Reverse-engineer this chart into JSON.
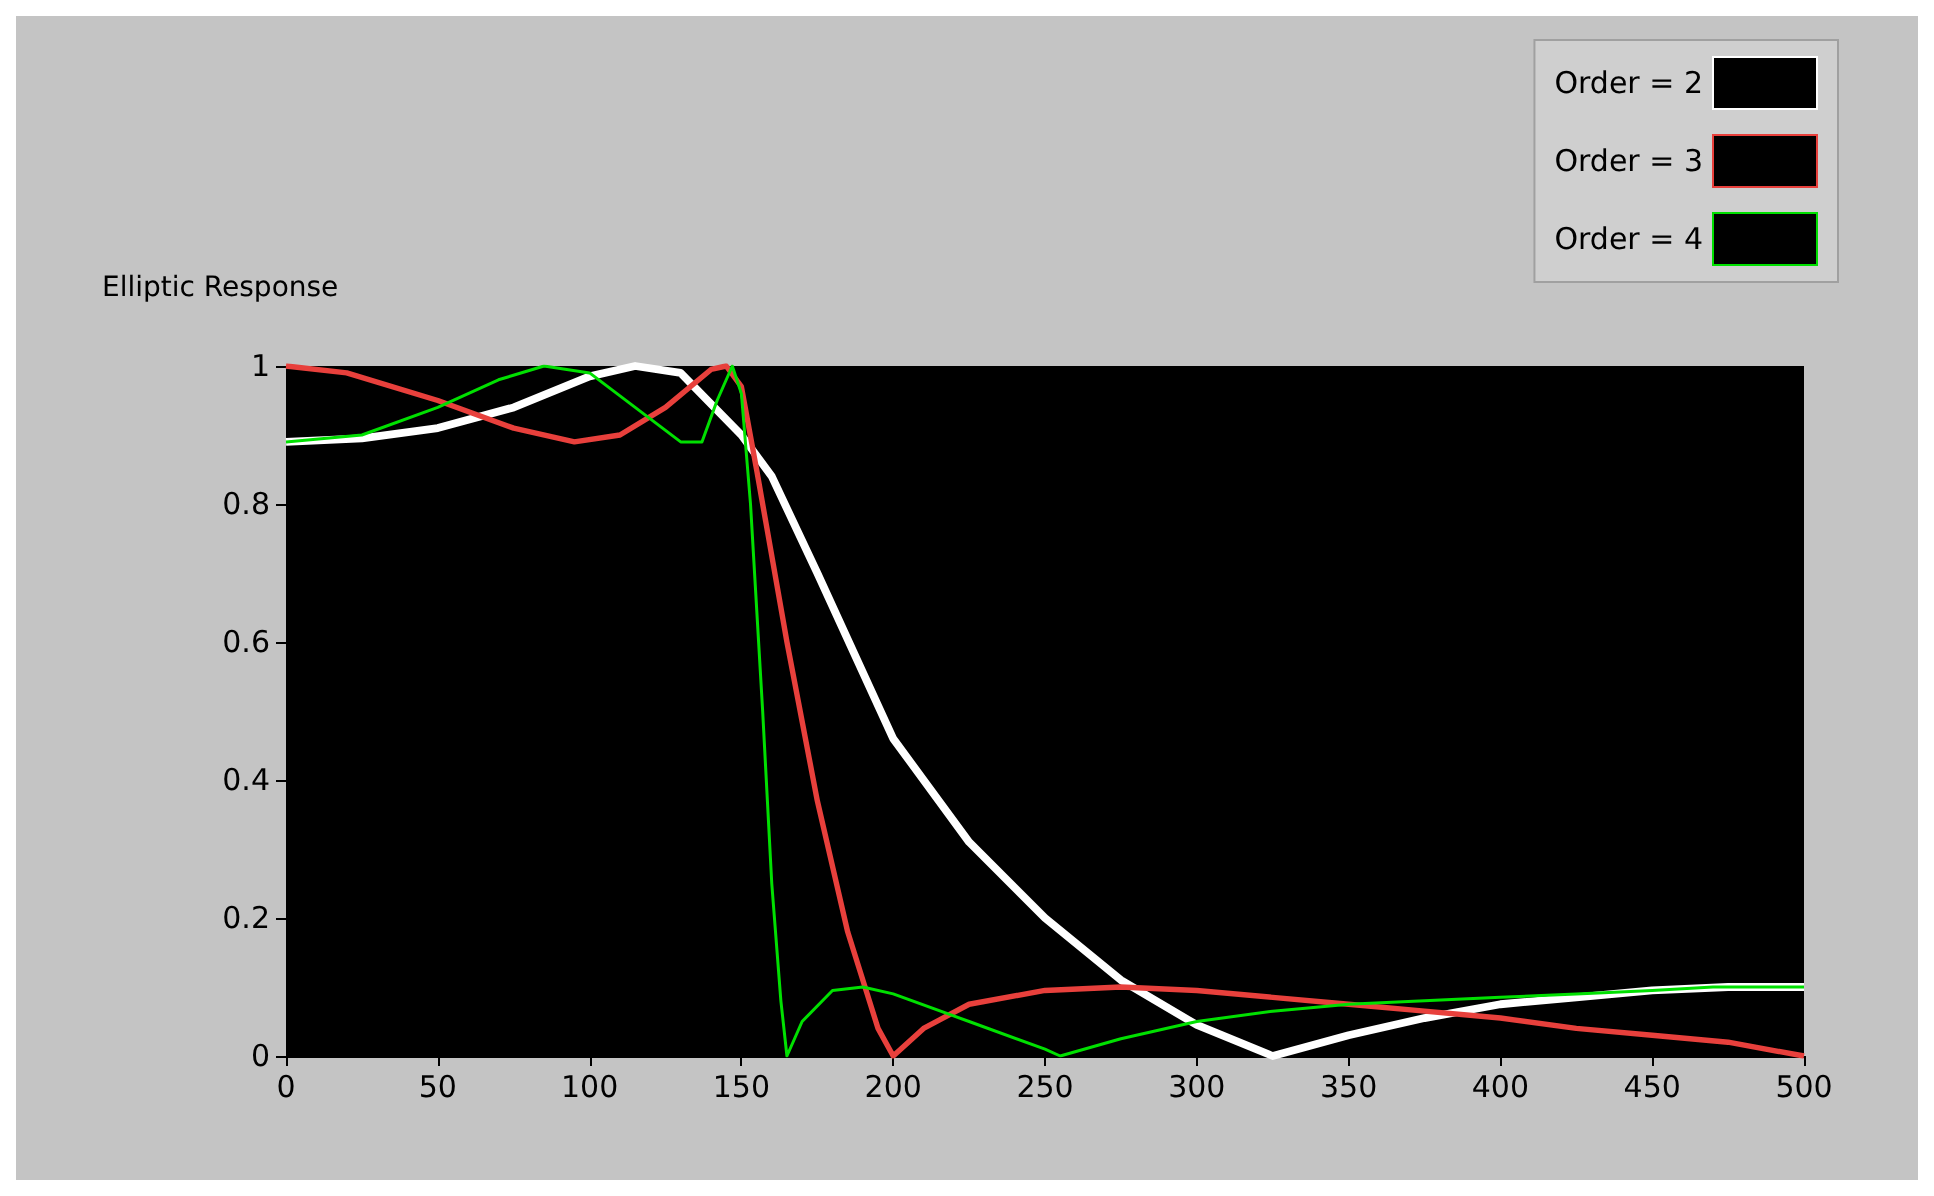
{
  "chart_data": {
    "type": "line",
    "title": "Elliptic Response",
    "legend": "top right",
    "grid": false,
    "marker": "none",
    "line_style": "solid",
    "xlim": [
      0,
      500
    ],
    "xticks": [
      0,
      50,
      100,
      150,
      200,
      250,
      300,
      350,
      400,
      450,
      500
    ],
    "ylim": [
      0,
      1
    ],
    "yticks": [
      0,
      0.2,
      0.4,
      0.6,
      0.8,
      1
    ],
    "series": [
      {
        "name": "Order = 2",
        "color": "#ffffff",
        "x": [
          0,
          25,
          50,
          75,
          100,
          115,
          130,
          150,
          160,
          175,
          200,
          225,
          250,
          275,
          300,
          325,
          350,
          375,
          400,
          425,
          450,
          475,
          500
        ],
        "values": [
          0.89,
          0.895,
          0.91,
          0.94,
          0.985,
          1,
          0.99,
          0.9,
          0.84,
          0.7,
          0.46,
          0.31,
          0.2,
          0.11,
          0.045,
          0,
          0.03,
          0.055,
          0.075,
          0.085,
          0.095,
          0.1,
          0.1
        ]
      },
      {
        "name": "Order = 3",
        "color": "#e8403c",
        "x": [
          0,
          20,
          50,
          75,
          95,
          110,
          125,
          140,
          145,
          150,
          155,
          165,
          175,
          185,
          195,
          200,
          210,
          225,
          250,
          275,
          300,
          325,
          350,
          375,
          400,
          425,
          450,
          475,
          500
        ],
        "values": [
          1,
          0.99,
          0.95,
          0.91,
          0.89,
          0.9,
          0.94,
          0.995,
          1,
          0.97,
          0.85,
          0.6,
          0.37,
          0.18,
          0.04,
          0,
          0.04,
          0.075,
          0.095,
          0.1,
          0.095,
          0.085,
          0.075,
          0.065,
          0.055,
          0.04,
          0.03,
          0.02,
          0
        ]
      },
      {
        "name": "Order = 4",
        "color": "#00e000",
        "x": [
          0,
          25,
          50,
          70,
          85,
          100,
          115,
          130,
          137,
          142,
          147,
          150,
          153,
          157,
          160,
          163,
          165,
          170,
          180,
          190,
          200,
          225,
          250,
          255,
          275,
          300,
          325,
          350,
          375,
          400,
          425,
          450,
          470,
          500
        ],
        "values": [
          0.89,
          0.9,
          0.94,
          0.98,
          1,
          0.99,
          0.94,
          0.89,
          0.89,
          0.95,
          1,
          0.96,
          0.8,
          0.5,
          0.25,
          0.08,
          0,
          0.05,
          0.095,
          0.1,
          0.09,
          0.05,
          0.01,
          0,
          0.025,
          0.05,
          0.065,
          0.075,
          0.08,
          0.085,
          0.09,
          0.095,
          0.1,
          0.1
        ]
      }
    ]
  }
}
